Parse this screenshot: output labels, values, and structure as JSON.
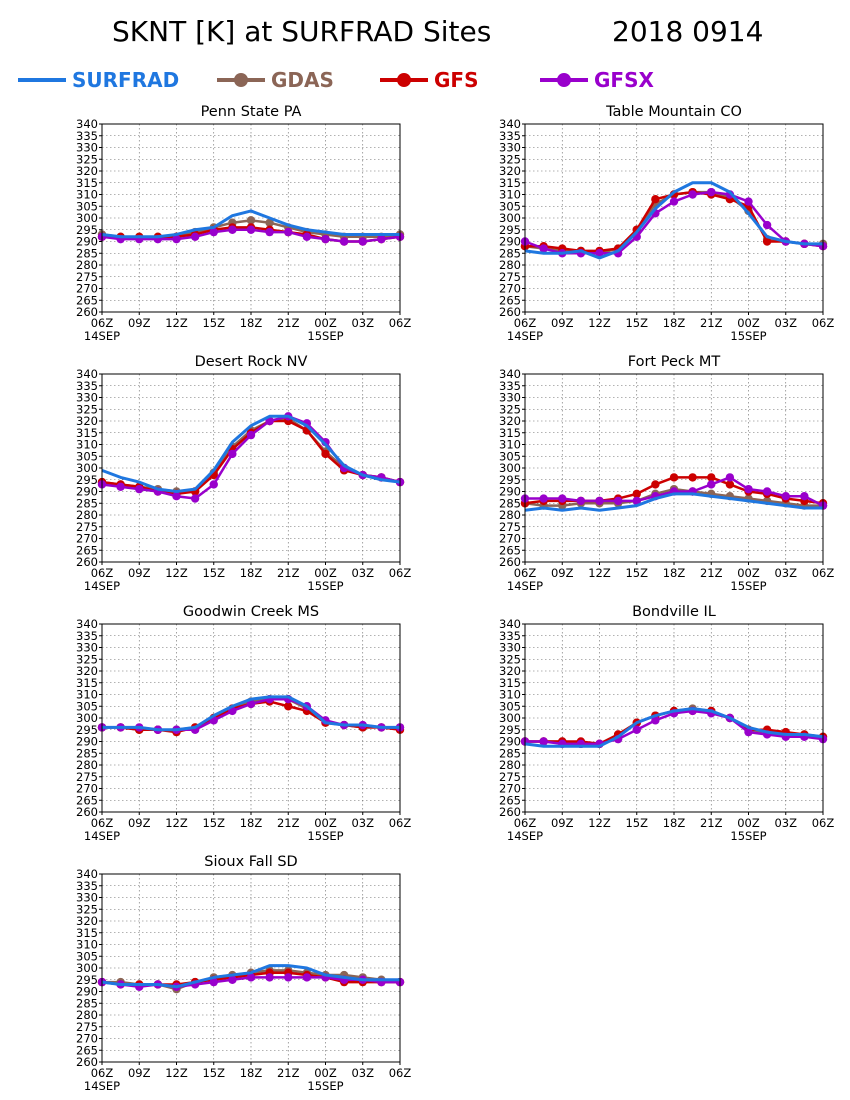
{
  "figure": {
    "title": "SKNT [K] at SURFRAD Sites",
    "date": "2018 0914"
  },
  "legend": [
    {
      "name": "SURFRAD",
      "color": "#1f77e0",
      "marker": false
    },
    {
      "name": "GDAS",
      "color": "#8b6556",
      "marker": true
    },
    {
      "name": "GFS",
      "color": "#cc0000",
      "marker": true
    },
    {
      "name": "GFSX",
      "color": "#9900cc",
      "marker": true
    }
  ],
  "chart_data": [
    {
      "type": "line",
      "title": "Penn State PA",
      "xticks": [
        "06Z",
        "09Z",
        "12Z",
        "15Z",
        "18Z",
        "21Z",
        "00Z",
        "03Z",
        "06Z"
      ],
      "xdates": [
        {
          "tick": "06Z",
          "label": "14SEP"
        },
        {
          "tick": "00Z",
          "label": "15SEP"
        }
      ],
      "ylim": [
        260,
        340
      ],
      "yticks": [
        260,
        265,
        270,
        275,
        280,
        285,
        290,
        295,
        300,
        305,
        310,
        315,
        320,
        325,
        330,
        335,
        340
      ],
      "grid": true,
      "x_hours": [
        0,
        1.5,
        3,
        4.5,
        6,
        7.5,
        9,
        10.5,
        12,
        13.5,
        15,
        16.5,
        18,
        19.5,
        21,
        22.5,
        24
      ],
      "series": [
        {
          "name": "SURFRAD",
          "values": [
            293,
            292,
            292,
            292,
            293,
            295,
            296,
            301,
            303,
            300,
            297,
            295,
            294,
            293,
            293,
            293,
            293
          ]
        },
        {
          "name": "GDAS",
          "values": [
            293,
            292,
            292,
            292,
            292,
            294,
            296,
            298,
            299,
            298,
            296,
            294,
            293,
            292,
            292,
            292,
            293
          ]
        },
        {
          "name": "GFS",
          "values": [
            292,
            292,
            292,
            292,
            292,
            293,
            295,
            296,
            296,
            295,
            294,
            293,
            291,
            290,
            290,
            291,
            292
          ]
        },
        {
          "name": "GFSX",
          "values": [
            292,
            291,
            291,
            291,
            291,
            292,
            294,
            295,
            295,
            294,
            294,
            292,
            291,
            290,
            290,
            291,
            292
          ]
        }
      ]
    },
    {
      "type": "line",
      "title": "Table Mountain CO",
      "xticks": [
        "06Z",
        "09Z",
        "12Z",
        "15Z",
        "18Z",
        "21Z",
        "00Z",
        "03Z",
        "06Z"
      ],
      "xdates": [
        {
          "tick": "06Z",
          "label": "14SEP"
        },
        {
          "tick": "00Z",
          "label": "15SEP"
        }
      ],
      "ylim": [
        260,
        340
      ],
      "yticks": [
        260,
        265,
        270,
        275,
        280,
        285,
        290,
        295,
        300,
        305,
        310,
        315,
        320,
        325,
        330,
        335,
        340
      ],
      "grid": true,
      "x_hours": [
        0,
        1.5,
        3,
        4.5,
        6,
        7.5,
        9,
        10.5,
        12,
        13.5,
        15,
        16.5,
        18,
        19.5,
        21,
        22.5,
        24
      ],
      "series": [
        {
          "name": "SURFRAD",
          "values": [
            286,
            285,
            285,
            286,
            283,
            286,
            294,
            304,
            311,
            315,
            315,
            311,
            302,
            292,
            290,
            289,
            289
          ]
        },
        {
          "name": "GDAS",
          "values": [
            288,
            287,
            286,
            286,
            285,
            287,
            295,
            306,
            310,
            311,
            311,
            309,
            303,
            291,
            290,
            289,
            289
          ]
        },
        {
          "name": "GFS",
          "values": [
            288,
            288,
            287,
            286,
            286,
            287,
            295,
            308,
            310,
            311,
            310,
            308,
            305,
            290,
            290,
            289,
            288
          ]
        },
        {
          "name": "GFSX",
          "values": [
            290,
            287,
            285,
            285,
            285,
            285,
            292,
            302,
            307,
            310,
            311,
            310,
            307,
            297,
            290,
            289,
            288
          ]
        }
      ]
    },
    {
      "type": "line",
      "title": "Desert Rock NV",
      "xticks": [
        "06Z",
        "09Z",
        "12Z",
        "15Z",
        "18Z",
        "21Z",
        "00Z",
        "03Z",
        "06Z"
      ],
      "xdates": [
        {
          "tick": "06Z",
          "label": "14SEP"
        },
        {
          "tick": "00Z",
          "label": "15SEP"
        }
      ],
      "ylim": [
        260,
        340
      ],
      "yticks": [
        260,
        265,
        270,
        275,
        280,
        285,
        290,
        295,
        300,
        305,
        310,
        315,
        320,
        325,
        330,
        335,
        340
      ],
      "grid": true,
      "x_hours": [
        0,
        1.5,
        3,
        4.5,
        6,
        7.5,
        9,
        10.5,
        12,
        13.5,
        15,
        16.5,
        18,
        19.5,
        21,
        22.5,
        24
      ],
      "series": [
        {
          "name": "SURFRAD",
          "values": [
            299,
            296,
            294,
            291,
            290,
            291,
            299,
            311,
            318,
            322,
            322,
            318,
            310,
            301,
            297,
            295,
            294
          ]
        },
        {
          "name": "GDAS",
          "values": [
            294,
            293,
            292,
            291,
            290,
            290,
            298,
            309,
            316,
            320,
            321,
            316,
            307,
            300,
            297,
            296,
            294
          ]
        },
        {
          "name": "GFS",
          "values": [
            294,
            293,
            292,
            290,
            289,
            290,
            297,
            308,
            315,
            320,
            320,
            316,
            306,
            299,
            297,
            296,
            294
          ]
        },
        {
          "name": "GFSX",
          "values": [
            293,
            292,
            291,
            290,
            288,
            287,
            293,
            306,
            314,
            320,
            322,
            319,
            311,
            300,
            297,
            296,
            294
          ]
        }
      ]
    },
    {
      "type": "line",
      "title": "Fort Peck MT",
      "xticks": [
        "06Z",
        "09Z",
        "12Z",
        "15Z",
        "18Z",
        "21Z",
        "00Z",
        "03Z",
        "06Z"
      ],
      "xdates": [
        {
          "tick": "06Z",
          "label": "14SEP"
        },
        {
          "tick": "00Z",
          "label": "15SEP"
        }
      ],
      "ylim": [
        260,
        340
      ],
      "yticks": [
        260,
        265,
        270,
        275,
        280,
        285,
        290,
        295,
        300,
        305,
        310,
        315,
        320,
        325,
        330,
        335,
        340
      ],
      "grid": true,
      "x_hours": [
        0,
        1.5,
        3,
        4.5,
        6,
        7.5,
        9,
        10.5,
        12,
        13.5,
        15,
        16.5,
        18,
        19.5,
        21,
        22.5,
        24
      ],
      "series": [
        {
          "name": "SURFRAD",
          "values": [
            282,
            283,
            282,
            283,
            282,
            283,
            284,
            287,
            289,
            289,
            288,
            287,
            286,
            285,
            284,
            283,
            283
          ]
        },
        {
          "name": "GDAS",
          "values": [
            285,
            284,
            284,
            285,
            285,
            285,
            286,
            289,
            291,
            290,
            289,
            288,
            287,
            286,
            285,
            284,
            284
          ]
        },
        {
          "name": "GFS",
          "values": [
            285,
            286,
            286,
            286,
            286,
            287,
            289,
            293,
            296,
            296,
            296,
            293,
            290,
            289,
            287,
            286,
            285
          ]
        },
        {
          "name": "GFSX",
          "values": [
            287,
            287,
            287,
            286,
            286,
            286,
            286,
            288,
            290,
            290,
            293,
            296,
            291,
            290,
            288,
            288,
            284
          ]
        }
      ]
    },
    {
      "type": "line",
      "title": "Goodwin Creek MS",
      "xticks": [
        "06Z",
        "09Z",
        "12Z",
        "15Z",
        "18Z",
        "21Z",
        "00Z",
        "03Z",
        "06Z"
      ],
      "xdates": [
        {
          "tick": "06Z",
          "label": "14SEP"
        },
        {
          "tick": "00Z",
          "label": "15SEP"
        }
      ],
      "ylim": [
        260,
        340
      ],
      "yticks": [
        260,
        265,
        270,
        275,
        280,
        285,
        290,
        295,
        300,
        305,
        310,
        315,
        320,
        325,
        330,
        335,
        340
      ],
      "grid": true,
      "x_hours": [
        0,
        1.5,
        3,
        4.5,
        6,
        7.5,
        9,
        10.5,
        12,
        13.5,
        15,
        16.5,
        18,
        19.5,
        21,
        22.5,
        24
      ],
      "series": [
        {
          "name": "SURFRAD",
          "values": [
            296,
            296,
            296,
            295,
            295,
            296,
            301,
            305,
            308,
            309,
            309,
            305,
            298,
            297,
            297,
            296,
            296
          ]
        },
        {
          "name": "GDAS",
          "values": [
            296,
            296,
            295,
            295,
            295,
            296,
            300,
            304,
            307,
            308,
            308,
            304,
            298,
            297,
            296,
            296,
            296
          ]
        },
        {
          "name": "GFS",
          "values": [
            296,
            296,
            295,
            295,
            294,
            296,
            300,
            304,
            306,
            307,
            305,
            303,
            298,
            297,
            296,
            296,
            295
          ]
        },
        {
          "name": "GFSX",
          "values": [
            296,
            296,
            296,
            295,
            295,
            295,
            299,
            303,
            306,
            308,
            308,
            305,
            299,
            297,
            297,
            296,
            296
          ]
        }
      ]
    },
    {
      "type": "line",
      "title": "Bondville IL",
      "xticks": [
        "06Z",
        "09Z",
        "12Z",
        "15Z",
        "18Z",
        "21Z",
        "00Z",
        "03Z",
        "06Z"
      ],
      "xdates": [
        {
          "tick": "06Z",
          "label": "14SEP"
        },
        {
          "tick": "00Z",
          "label": "15SEP"
        }
      ],
      "ylim": [
        260,
        340
      ],
      "yticks": [
        260,
        265,
        270,
        275,
        280,
        285,
        290,
        295,
        300,
        305,
        310,
        315,
        320,
        325,
        330,
        335,
        340
      ],
      "grid": true,
      "x_hours": [
        0,
        1.5,
        3,
        4.5,
        6,
        7.5,
        9,
        10.5,
        12,
        13.5,
        15,
        16.5,
        18,
        19.5,
        21,
        22.5,
        24
      ],
      "series": [
        {
          "name": "SURFRAD",
          "values": [
            289,
            288,
            288,
            288,
            288,
            292,
            298,
            301,
            303,
            304,
            303,
            300,
            296,
            294,
            293,
            293,
            292
          ]
        },
        {
          "name": "GDAS",
          "values": [
            290,
            290,
            290,
            289,
            289,
            293,
            298,
            301,
            303,
            304,
            303,
            300,
            295,
            294,
            293,
            293,
            292
          ]
        },
        {
          "name": "GFS",
          "values": [
            290,
            290,
            290,
            290,
            289,
            293,
            298,
            301,
            303,
            303,
            303,
            300,
            295,
            295,
            294,
            293,
            292
          ]
        },
        {
          "name": "GFSX",
          "values": [
            290,
            290,
            289,
            289,
            289,
            291,
            295,
            299,
            302,
            303,
            302,
            300,
            294,
            293,
            292,
            292,
            291
          ]
        }
      ]
    },
    {
      "type": "line",
      "title": "Sioux Fall SD",
      "xticks": [
        "06Z",
        "09Z",
        "12Z",
        "15Z",
        "18Z",
        "21Z",
        "00Z",
        "03Z",
        "06Z"
      ],
      "xdates": [
        {
          "tick": "06Z",
          "label": "14SEP"
        },
        {
          "tick": "00Z",
          "label": "15SEP"
        }
      ],
      "ylim": [
        260,
        340
      ],
      "yticks": [
        260,
        265,
        270,
        275,
        280,
        285,
        290,
        295,
        300,
        305,
        310,
        315,
        320,
        325,
        330,
        335,
        340
      ],
      "grid": true,
      "x_hours": [
        0,
        1.5,
        3,
        4.5,
        6,
        7.5,
        9,
        10.5,
        12,
        13.5,
        15,
        16.5,
        18,
        19.5,
        21,
        22.5,
        24
      ],
      "series": [
        {
          "name": "SURFRAD",
          "values": [
            294,
            293,
            293,
            293,
            292,
            294,
            296,
            297,
            298,
            301,
            301,
            300,
            297,
            296,
            295,
            295,
            295
          ]
        },
        {
          "name": "GDAS",
          "values": [
            294,
            294,
            293,
            293,
            291,
            294,
            296,
            297,
            298,
            299,
            299,
            298,
            297,
            297,
            296,
            295,
            294
          ]
        },
        {
          "name": "GFS",
          "values": [
            294,
            293,
            293,
            293,
            293,
            294,
            295,
            296,
            297,
            298,
            298,
            297,
            296,
            294,
            294,
            294,
            294
          ]
        },
        {
          "name": "GFSX",
          "values": [
            294,
            293,
            292,
            293,
            292,
            293,
            294,
            295,
            296,
            296,
            296,
            296,
            296,
            295,
            295,
            294,
            294
          ]
        }
      ]
    }
  ]
}
